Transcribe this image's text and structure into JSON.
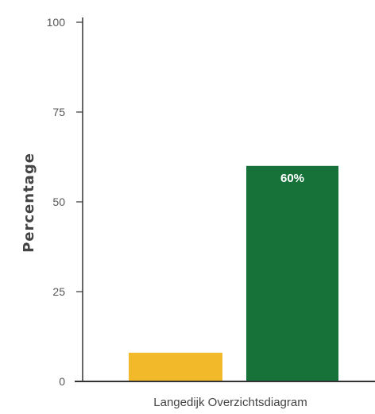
{
  "chart_data": {
    "type": "bar",
    "title": "",
    "xlabel": "",
    "ylabel": "Percentage",
    "ylim": [
      0,
      100
    ],
    "yticks": [
      0,
      25,
      50,
      75,
      100
    ],
    "categories": [
      "Langedijk Overzichtsdiagram"
    ],
    "series": [
      {
        "values": [
          8
        ],
        "color": "#f2b92a"
      },
      {
        "values": [
          60
        ],
        "color": "#17723a",
        "data_label": "60%"
      }
    ],
    "grid": false,
    "axis_color": "#333333"
  }
}
